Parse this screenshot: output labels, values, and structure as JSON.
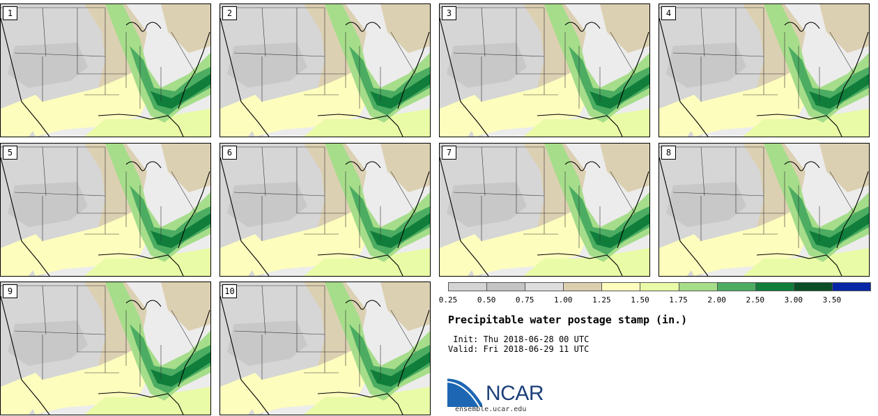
{
  "panels": [
    {
      "label": "1"
    },
    {
      "label": "2"
    },
    {
      "label": "3"
    },
    {
      "label": "4"
    },
    {
      "label": "5"
    },
    {
      "label": "6"
    },
    {
      "label": "7"
    },
    {
      "label": "8"
    },
    {
      "label": "9"
    },
    {
      "label": "10"
    }
  ],
  "legend": {
    "colors": [
      "#d4d4d4",
      "#c4c4c4",
      "#dedede",
      "#dccfb0",
      "#fdfdbe",
      "#e9fba6",
      "#a6dd8a",
      "#4cad62",
      "#107d3b",
      "#0a4e27",
      "#0727a7"
    ],
    "ticks": [
      "0.25",
      "0.50",
      "0.75",
      "1.00",
      "1.25",
      "1.50",
      "1.75",
      "2.00",
      "2.50",
      "3.00",
      "3.50"
    ]
  },
  "title": "Precipitable water postage stamp (in.)",
  "init": " Init: Thu 2018-06-28 00 UTC",
  "valid": "Valid: Fri 2018-06-29 11 UTC",
  "logo": {
    "name": "NCAR",
    "url": "ensemble.ucar.edu"
  }
}
